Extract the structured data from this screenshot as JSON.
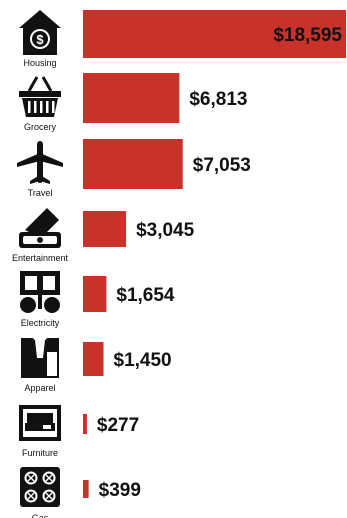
{
  "colors": {
    "bar": "#c8322b",
    "icon": "#111111",
    "text_dark": "#111111",
    "text_light": "#111111"
  },
  "chart_data": {
    "type": "bar",
    "orientation": "horizontal",
    "categories": [
      "Housing",
      "Grocery",
      "Travel",
      "Entertainment",
      "Electricity",
      "Apparel",
      "Furniture",
      "Gas"
    ],
    "values": [
      18595,
      6813,
      7053,
      3045,
      1654,
      1450,
      277,
      399
    ],
    "value_labels": [
      "$18,595",
      "$6,813",
      "$7,053",
      "$3,045",
      "$1,654",
      "$1,450",
      "$277",
      "$399"
    ],
    "icons": [
      "house-dollar-icon",
      "shopping-basket-icon",
      "airplane-icon",
      "cash-stack-icon",
      "electricity-icon",
      "apparel-icon",
      "sofa-icon",
      "stove-icon"
    ],
    "xlim": [
      0,
      18595
    ],
    "grid": false,
    "legend": "none"
  }
}
